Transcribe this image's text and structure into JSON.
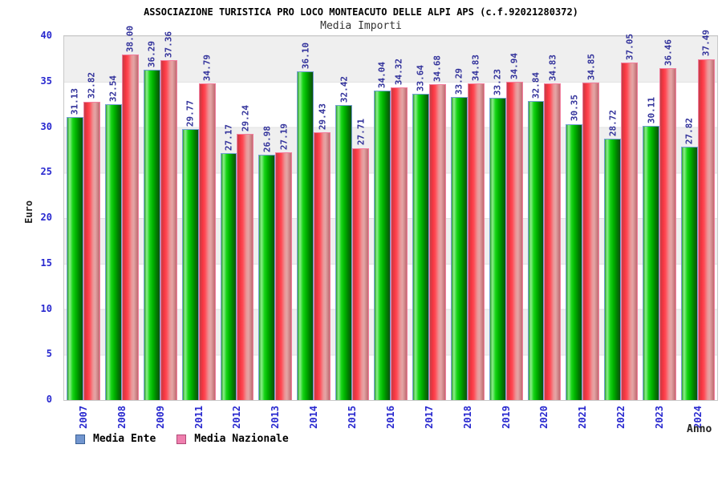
{
  "header": {
    "title": "ASSOCIAZIONE TURISTICA PRO LOCO MONTEACUTO DELLE ALPI APS (c.f.92021280372)",
    "subtitle": "Media Importi"
  },
  "axes": {
    "y_label": "Euro",
    "x_label": "Anno",
    "y_ticks": [
      0,
      5,
      10,
      15,
      20,
      25,
      30,
      35,
      40
    ]
  },
  "legend": [
    {
      "label": "Media Ente",
      "swatch": "#7296cf",
      "border": "#3a5f94"
    },
    {
      "label": "Media Nazionale",
      "swatch": "#ef7fae",
      "border": "#b14a77"
    }
  ],
  "colors": {
    "bar_ente_fill": "#00c000",
    "bar_ente_border": "#74a0d4",
    "bar_nazionale_fill": "#ee3344",
    "bar_nazionale_border": "#f27e9e",
    "tick_label": "#2828cf",
    "value_label": "#32329b",
    "band_gray": "#efefef"
  },
  "chart_data": {
    "type": "bar",
    "title": "ASSOCIAZIONE TURISTICA PRO LOCO MONTEACUTO DELLE ALPI APS (c.f.92021280372)",
    "subtitle": "Media Importi",
    "categories": [
      "2007",
      "2008",
      "2009",
      "2011",
      "2012",
      "2013",
      "2014",
      "2015",
      "2016",
      "2017",
      "2018",
      "2019",
      "2020",
      "2021",
      "2022",
      "2023",
      "2024"
    ],
    "series": [
      {
        "name": "Media Ente",
        "values": [
          31.13,
          32.54,
          36.29,
          29.77,
          27.17,
          26.98,
          36.1,
          32.42,
          34.04,
          33.64,
          33.29,
          33.23,
          32.84,
          30.35,
          28.72,
          30.11,
          27.82
        ]
      },
      {
        "name": "Media Nazionale",
        "values": [
          32.82,
          38.0,
          37.36,
          34.79,
          29.24,
          27.19,
          29.43,
          27.71,
          34.32,
          34.68,
          34.83,
          34.94,
          34.83,
          34.85,
          37.05,
          36.46,
          37.49
        ]
      }
    ],
    "xlabel": "Anno",
    "ylabel": "Euro",
    "ylim": [
      0,
      40
    ],
    "y_tick_step": 5,
    "grid": "horizontal alternating bands, gridlines every 5",
    "legend_position": "bottom-left",
    "value_labels": "rotated 90deg above each bar, 2 decimals"
  }
}
